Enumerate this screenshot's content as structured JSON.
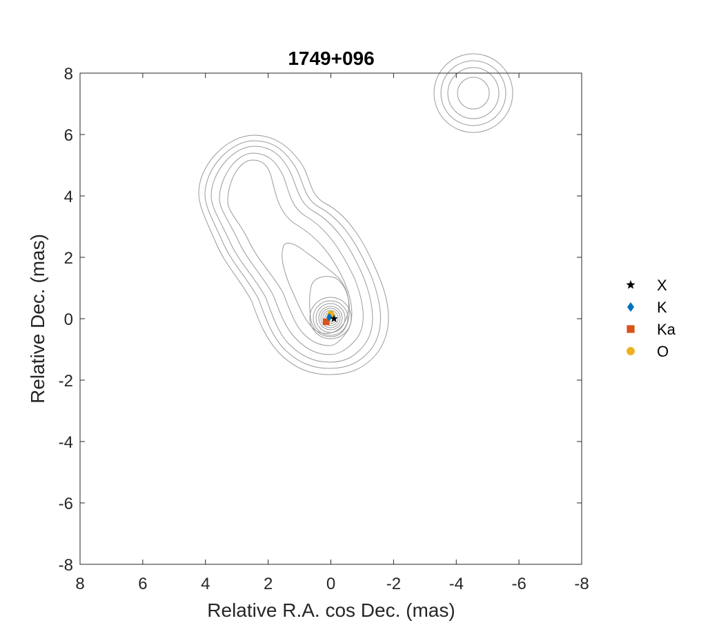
{
  "chart_data": {
    "type": "scatter",
    "title": "1749+096",
    "xlabel": "Relative R.A. cos Dec. (mas)",
    "ylabel": "Relative Dec. (mas)",
    "xlim": [
      8,
      -8
    ],
    "ylim": [
      -8,
      8
    ],
    "x_reversed": true,
    "xticks": [
      8,
      6,
      4,
      2,
      0,
      -2,
      -4,
      -6,
      -8
    ],
    "yticks": [
      8,
      6,
      4,
      2,
      0,
      -2,
      -4,
      -6,
      -8
    ],
    "grid": false,
    "legend_position": "outside-right",
    "series": [
      {
        "name": "X",
        "marker": "star",
        "color": "#000000",
        "points": [
          [
            -0.1,
            0.0
          ]
        ]
      },
      {
        "name": "K",
        "marker": "diamond",
        "color": "#0072BD",
        "points": [
          [
            0.05,
            0.05
          ]
        ]
      },
      {
        "name": "Ka",
        "marker": "square",
        "color": "#D95319",
        "points": [
          [
            0.15,
            -0.1
          ]
        ]
      },
      {
        "name": "O",
        "marker": "circle",
        "color": "#EDB120",
        "points": [
          [
            0.0,
            0.15
          ]
        ]
      }
    ],
    "contour_color": "#9a9a9a"
  }
}
